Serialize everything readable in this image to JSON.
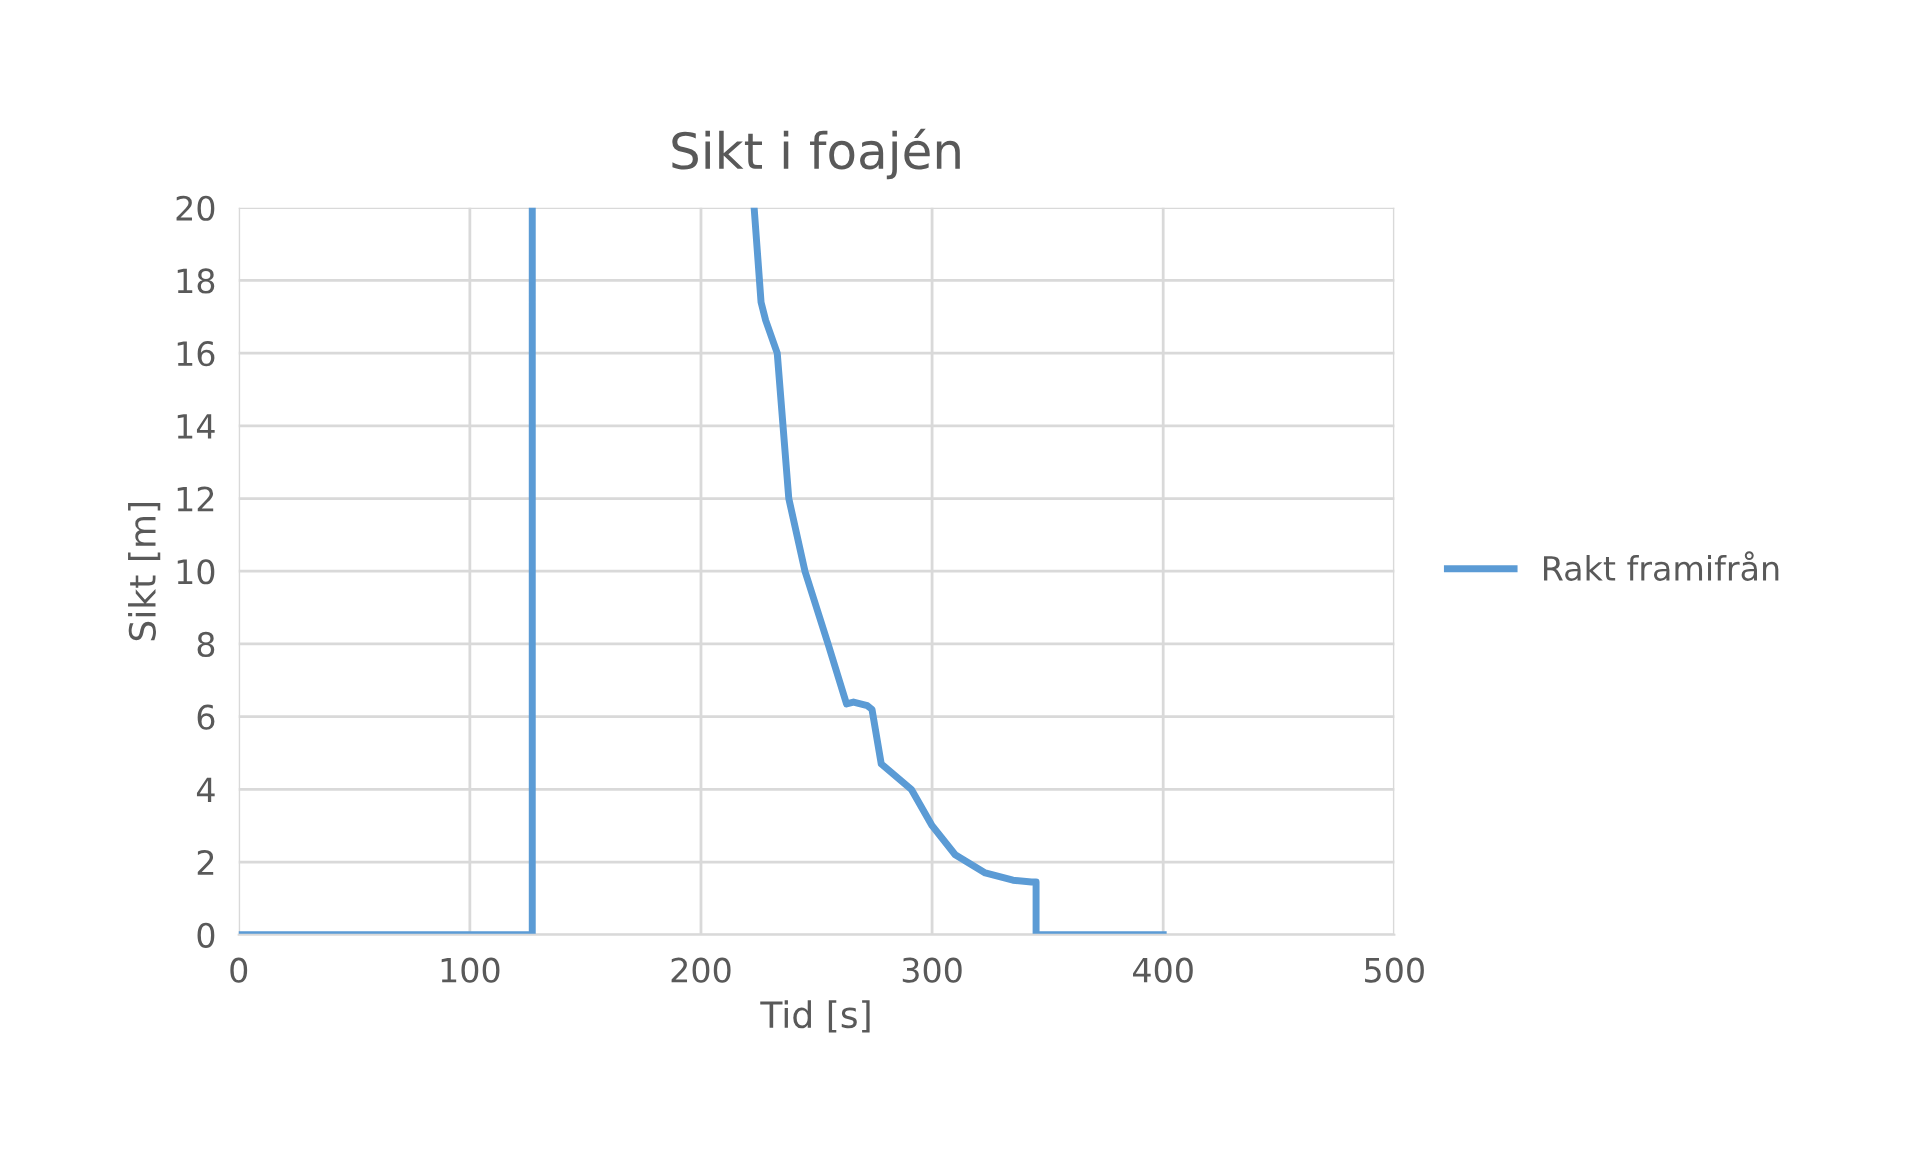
{
  "chart_data": {
    "type": "line",
    "title": "Sikt i foajén",
    "xlabel": "Tid [s]",
    "ylabel": "Sikt [m]",
    "xlim": [
      0,
      500
    ],
    "xticks": [
      0,
      100,
      200,
      300,
      400,
      500
    ],
    "ylim": [
      0,
      20
    ],
    "yticks": [
      0,
      2,
      4,
      6,
      8,
      10,
      12,
      14,
      16,
      18,
      20
    ],
    "grid": true,
    "legend": "right",
    "line_style": "solid",
    "marker": "none",
    "series": [
      {
        "name": "Rakt framifrån",
        "color": "#5b9bd5",
        "x": [
          0,
          127,
          127,
          175,
          223,
          226,
          228,
          233,
          238,
          245,
          255,
          263,
          266,
          272,
          274,
          278,
          291,
          300,
          310,
          323,
          335,
          343,
          345,
          345,
          400
        ],
        "values": [
          0,
          0,
          20,
          null,
          20,
          17.4,
          16.9,
          16,
          12,
          10,
          8,
          6.35,
          6.4,
          6.3,
          6.2,
          4.7,
          4,
          3,
          2.2,
          1.7,
          1.5,
          1.45,
          1.45,
          0,
          0
        ]
      }
    ]
  }
}
